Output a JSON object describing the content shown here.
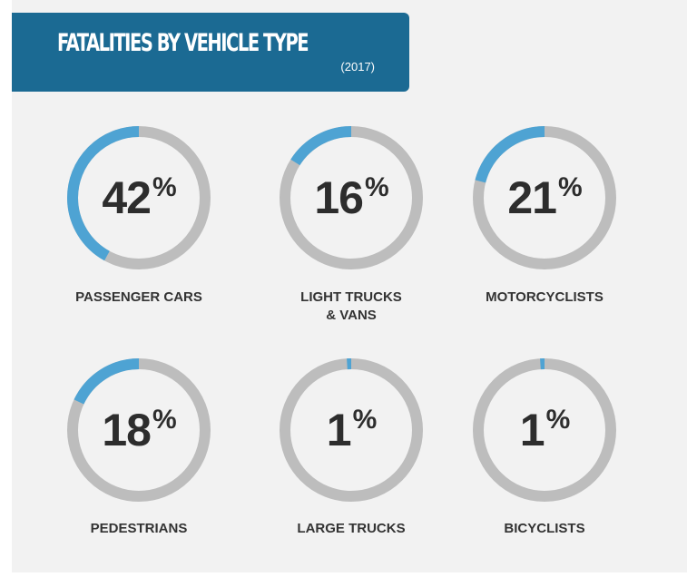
{
  "header": {
    "title": "FATALITIES BY VEHICLE TYPE",
    "subtitle": "(2017)"
  },
  "colors": {
    "banner": "#1b6a93",
    "ring_filled": "#4ea3d3",
    "ring_track": "#bdbdbd",
    "panel_bg": "#f2f2f2",
    "text": "#2d2d2d"
  },
  "chart_data": {
    "type": "donut",
    "title": "FATALITIES BY VEHICLE TYPE",
    "subtitle": "(2017)",
    "unit": "%",
    "categories": [
      "PASSENGER CARS",
      "LIGHT TRUCKS & VANS",
      "MOTORCYCLISTS",
      "PEDESTRIANS",
      "LARGE TRUCKS",
      "BICYCLISTS"
    ],
    "values": [
      42,
      16,
      21,
      18,
      1,
      1
    ],
    "items": [
      {
        "label": "PASSENGER CARS",
        "value": 42,
        "value_text": "42",
        "unit": "%"
      },
      {
        "label": "LIGHT TRUCKS\n& VANS",
        "value": 16,
        "value_text": "16",
        "unit": "%"
      },
      {
        "label": "MOTORCYCLISTS",
        "value": 21,
        "value_text": "21",
        "unit": "%"
      },
      {
        "label": "PEDESTRIANS",
        "value": 18,
        "value_text": "18",
        "unit": "%"
      },
      {
        "label": "LARGE TRUCKS",
        "value": 1,
        "value_text": "1",
        "unit": "%"
      },
      {
        "label": "BICYCLISTS",
        "value": 1,
        "value_text": "1",
        "unit": "%"
      }
    ]
  }
}
